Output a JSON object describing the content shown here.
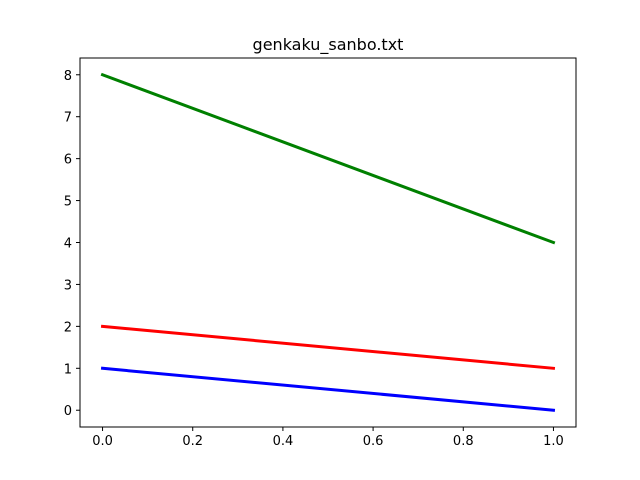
{
  "chart_data": {
    "type": "line",
    "title": "genkaku_sanbo.txt",
    "xlabel": "",
    "ylabel": "",
    "xlim": [
      -0.05,
      1.05
    ],
    "ylim": [
      -0.4,
      8.4
    ],
    "xticks": [
      0.0,
      0.2,
      0.4,
      0.6,
      0.8,
      1.0
    ],
    "xtick_labels": [
      "0.0",
      "0.2",
      "0.4",
      "0.6",
      "0.8",
      "1.0"
    ],
    "yticks": [
      0,
      1,
      2,
      3,
      4,
      5,
      6,
      7,
      8
    ],
    "ytick_labels": [
      "0",
      "1",
      "2",
      "3",
      "4",
      "5",
      "6",
      "7",
      "8"
    ],
    "grid": false,
    "legend": "none",
    "x": [
      0.0,
      1.0
    ],
    "series": [
      {
        "color": "#008000",
        "values": [
          8,
          4
        ]
      },
      {
        "color": "#ff0000",
        "values": [
          2,
          1
        ]
      },
      {
        "color": "#0000ff",
        "values": [
          1,
          0
        ]
      }
    ]
  }
}
